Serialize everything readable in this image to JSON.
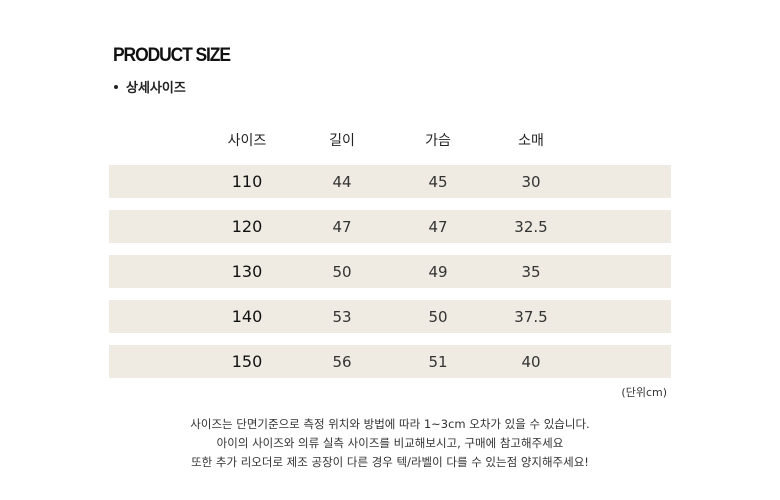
{
  "title": "PRODUCT SIZE",
  "subtitle": "상세사이즈",
  "table": {
    "headers": [
      "사이즈",
      "길이",
      "가슴",
      "소매"
    ],
    "rows": [
      [
        "110",
        "44",
        "45",
        "30"
      ],
      [
        "120",
        "47",
        "47",
        "32.5"
      ],
      [
        "130",
        "50",
        "49",
        "35"
      ],
      [
        "140",
        "53",
        "50",
        "37.5"
      ],
      [
        "150",
        "56",
        "51",
        "40"
      ]
    ]
  },
  "unit_label": "(단위cm)",
  "notes": [
    "사이즈는 단면기준으로 측정 위치와 방법에 따라 1~3cm 오차가 있을 수 있습니다.",
    "아이의 사이즈와 의류 실측 사이즈를 비교해보시고, 구매에 참고해주세요",
    "또한 추가 리오더로 제조 공장이 다른 경우 텍/라벨이 다를 수 있는점 양지해주세요!"
  ]
}
